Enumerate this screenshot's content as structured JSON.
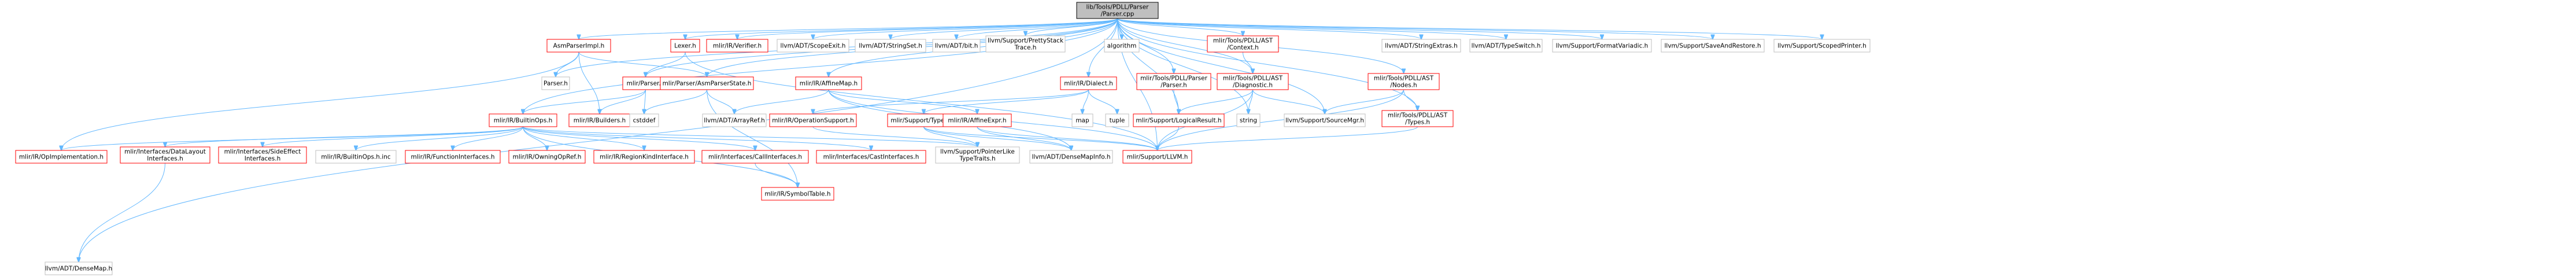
{
  "colors": {
    "root_fill": "#bfbfbf",
    "node_stroke_plain": "#bfbfbf",
    "node_stroke_link": "#ff0000",
    "edge": "#63b8ff",
    "text": "#000000"
  },
  "nodes": [
    {
      "id": "root",
      "lines": [
        "lib/Tools/PDLL/Parser",
        "/Parser.cpp"
      ],
      "kind": "root"
    },
    {
      "id": "dm",
      "lines": [
        "llvm/ADT/DenseMap.h"
      ],
      "kind": "plain"
    },
    {
      "id": "amp",
      "lines": [
        "AsmParserImpl.h"
      ],
      "kind": "link"
    },
    {
      "id": "parserh",
      "lines": [
        "Parser.h"
      ],
      "kind": "plain"
    },
    {
      "id": "lexer",
      "lines": [
        "Lexer.h"
      ],
      "kind": "link"
    },
    {
      "id": "verifier",
      "lines": [
        "mlir/IR/Verifier.h"
      ],
      "kind": "link"
    },
    {
      "id": "scopeexit",
      "lines": [
        "llvm/ADT/ScopeExit.h"
      ],
      "kind": "plain"
    },
    {
      "id": "stringset",
      "lines": [
        "llvm/ADT/StringSet.h"
      ],
      "kind": "plain"
    },
    {
      "id": "bit",
      "lines": [
        "llvm/ADT/bit.h"
      ],
      "kind": "plain"
    },
    {
      "id": "pretty",
      "lines": [
        "llvm/Support/PrettyStack",
        "Trace.h"
      ],
      "kind": "plain"
    },
    {
      "id": "algorithm",
      "lines": [
        "algorithm"
      ],
      "kind": "plain"
    },
    {
      "id": "pdllparser",
      "lines": [
        "mlir/Tools/PDLL/Parser",
        "/Parser.h"
      ],
      "kind": "link"
    },
    {
      "id": "context",
      "lines": [
        "mlir/Tools/PDLL/AST",
        "/Context.h"
      ],
      "kind": "link"
    },
    {
      "id": "strextras",
      "lines": [
        "llvm/ADT/StringExtras.h"
      ],
      "kind": "plain"
    },
    {
      "id": "typeswitch",
      "lines": [
        "llvm/ADT/TypeSwitch.h"
      ],
      "kind": "plain"
    },
    {
      "id": "formatvar",
      "lines": [
        "llvm/Support/FormatVariadic.h"
      ],
      "kind": "plain"
    },
    {
      "id": "saverestore",
      "lines": [
        "llvm/Support/SaveAndRestore.h"
      ],
      "kind": "plain"
    },
    {
      "id": "scopedprinter",
      "lines": [
        "llvm/Support/ScopedPrinter.h"
      ],
      "kind": "plain"
    },
    {
      "id": "mparser",
      "lines": [
        "mlir/Parser.h"
      ],
      "kind": "link"
    },
    {
      "id": "aps",
      "lines": [
        "mlir/Parser/AsmParserState.h"
      ],
      "kind": "link"
    },
    {
      "id": "affinemap",
      "lines": [
        "mlir/IR/AffineMap.h"
      ],
      "kind": "link"
    },
    {
      "id": "dialect",
      "lines": [
        "mlir/IR/Dialect.h"
      ],
      "kind": "link"
    },
    {
      "id": "diag",
      "lines": [
        "mlir/Tools/PDLL/AST",
        "/Diagnostic.h"
      ],
      "kind": "link"
    },
    {
      "id": "nodes",
      "lines": [
        "mlir/Tools/PDLL/AST",
        "/Nodes.h"
      ],
      "kind": "link"
    },
    {
      "id": "builtinops",
      "lines": [
        "mlir/IR/BuiltinOps.h"
      ],
      "kind": "link"
    },
    {
      "id": "builders",
      "lines": [
        "mlir/IR/Builders.h"
      ],
      "kind": "link"
    },
    {
      "id": "cstddef",
      "lines": [
        "cstddef"
      ],
      "kind": "plain"
    },
    {
      "id": "arrayref",
      "lines": [
        "llvm/ADT/ArrayRef.h"
      ],
      "kind": "plain"
    },
    {
      "id": "opsupport",
      "lines": [
        "mlir/IR/OperationSupport.h"
      ],
      "kind": "link"
    },
    {
      "id": "typeid",
      "lines": [
        "mlir/Support/TypeID.h"
      ],
      "kind": "link"
    },
    {
      "id": "affineexpr",
      "lines": [
        "mlir/IR/AffineExpr.h"
      ],
      "kind": "link"
    },
    {
      "id": "map",
      "lines": [
        "map"
      ],
      "kind": "plain"
    },
    {
      "id": "tuple",
      "lines": [
        "tuple"
      ],
      "kind": "plain"
    },
    {
      "id": "logical",
      "lines": [
        "mlir/Support/LogicalResult.h"
      ],
      "kind": "link"
    },
    {
      "id": "string",
      "lines": [
        "string"
      ],
      "kind": "plain"
    },
    {
      "id": "srcmgr",
      "lines": [
        "llvm/Support/SourceMgr.h"
      ],
      "kind": "plain"
    },
    {
      "id": "types",
      "lines": [
        "mlir/Tools/PDLL/AST",
        "/Types.h"
      ],
      "kind": "link"
    },
    {
      "id": "opimpl",
      "lines": [
        "mlir/IR/OpImplementation.h"
      ],
      "kind": "link"
    },
    {
      "id": "datalayout",
      "lines": [
        "mlir/Interfaces/DataLayout",
        "Interfaces.h"
      ],
      "kind": "link"
    },
    {
      "id": "sideeffect",
      "lines": [
        "mlir/Interfaces/SideEffect",
        "Interfaces.h"
      ],
      "kind": "link"
    },
    {
      "id": "builtininc",
      "lines": [
        "mlir/IR/BuiltinOps.h.inc"
      ],
      "kind": "plain"
    },
    {
      "id": "funciface",
      "lines": [
        "mlir/IR/FunctionInterfaces.h"
      ],
      "kind": "link"
    },
    {
      "id": "owningop",
      "lines": [
        "mlir/IR/OwningOpRef.h"
      ],
      "kind": "link"
    },
    {
      "id": "regionkind",
      "lines": [
        "mlir/IR/RegionKindInterface.h"
      ],
      "kind": "link"
    },
    {
      "id": "calliface",
      "lines": [
        "mlir/Interfaces/CallInterfaces.h"
      ],
      "kind": "link"
    },
    {
      "id": "castiface",
      "lines": [
        "mlir/Interfaces/CastInterfaces.h"
      ],
      "kind": "link"
    },
    {
      "id": "ptrlike",
      "lines": [
        "llvm/Support/PointerLike",
        "TypeTraits.h"
      ],
      "kind": "plain"
    },
    {
      "id": "densemapinfo",
      "lines": [
        "llvm/ADT/DenseMapInfo.h"
      ],
      "kind": "plain"
    },
    {
      "id": "llvmh",
      "lines": [
        "mlir/Support/LLVM.h"
      ],
      "kind": "link"
    },
    {
      "id": "symtable",
      "lines": [
        "mlir/IR/SymbolTable.h"
      ],
      "kind": "link"
    }
  ],
  "edges": [
    [
      "root",
      "dm"
    ],
    [
      "root",
      "amp"
    ],
    [
      "root",
      "parserh"
    ],
    [
      "root",
      "lexer"
    ],
    [
      "root",
      "verifier"
    ],
    [
      "root",
      "scopeexit"
    ],
    [
      "root",
      "stringset"
    ],
    [
      "root",
      "bit"
    ],
    [
      "root",
      "pretty"
    ],
    [
      "root",
      "algorithm"
    ],
    [
      "root",
      "pdllparser"
    ],
    [
      "root",
      "context"
    ],
    [
      "root",
      "strextras"
    ],
    [
      "root",
      "typeswitch"
    ],
    [
      "root",
      "formatvar"
    ],
    [
      "root",
      "saverestore"
    ],
    [
      "root",
      "scopedprinter"
    ],
    [
      "root",
      "mparser"
    ],
    [
      "root",
      "aps"
    ],
    [
      "root",
      "affinemap"
    ],
    [
      "root",
      "dialect"
    ],
    [
      "root",
      "diag"
    ],
    [
      "root",
      "nodes"
    ],
    [
      "root",
      "builtinops"
    ],
    [
      "root",
      "types"
    ],
    [
      "root",
      "logical"
    ],
    [
      "root",
      "srcmgr"
    ],
    [
      "root",
      "string"
    ],
    [
      "root",
      "llvmh"
    ],
    [
      "amp",
      "parserh"
    ],
    [
      "amp",
      "aps"
    ],
    [
      "amp",
      "builders"
    ],
    [
      "amp",
      "opimpl"
    ],
    [
      "lexer",
      "mparser"
    ],
    [
      "lexer",
      "llvmh"
    ],
    [
      "mparser",
      "builtinops"
    ],
    [
      "mparser",
      "builders"
    ],
    [
      "mparser",
      "cstddef"
    ],
    [
      "aps",
      "arrayref"
    ],
    [
      "aps",
      "cstddef"
    ],
    [
      "aps",
      "symtable"
    ],
    [
      "affinemap",
      "arrayref"
    ],
    [
      "affinemap",
      "affineexpr"
    ],
    [
      "affinemap",
      "densemapinfo"
    ],
    [
      "affinemap",
      "llvmh"
    ],
    [
      "dialect",
      "opsupport"
    ],
    [
      "dialect",
      "typeid"
    ],
    [
      "dialect",
      "map"
    ],
    [
      "dialect",
      "tuple"
    ],
    [
      "pdllparser",
      "logical"
    ],
    [
      "context",
      "diag"
    ],
    [
      "diag",
      "logical"
    ],
    [
      "diag",
      "string"
    ],
    [
      "diag",
      "srcmgr"
    ],
    [
      "diag",
      "llvmh"
    ],
    [
      "nodes",
      "srcmgr"
    ],
    [
      "nodes",
      "types"
    ],
    [
      "nodes",
      "llvmh"
    ],
    [
      "types",
      "llvmh"
    ],
    [
      "logical",
      "llvmh"
    ],
    [
      "typeid",
      "ptrlike"
    ],
    [
      "typeid",
      "densemapinfo"
    ],
    [
      "typeid",
      "llvmh"
    ],
    [
      "affineexpr",
      "densemapinfo"
    ],
    [
      "affineexpr",
      "llvmh"
    ],
    [
      "opsupport",
      "ptrlike"
    ],
    [
      "builtinops",
      "opimpl"
    ],
    [
      "builtinops",
      "datalayout"
    ],
    [
      "builtinops",
      "sideeffect"
    ],
    [
      "builtinops",
      "builtininc"
    ],
    [
      "builtinops",
      "funciface"
    ],
    [
      "builtinops",
      "owningop"
    ],
    [
      "builtinops",
      "regionkind"
    ],
    [
      "builtinops",
      "calliface"
    ],
    [
      "builtinops",
      "castiface"
    ],
    [
      "builtinops",
      "ptrlike"
    ],
    [
      "builtinops",
      "symtable"
    ],
    [
      "calliface",
      "symtable"
    ],
    [
      "datalayout",
      "dm"
    ]
  ]
}
